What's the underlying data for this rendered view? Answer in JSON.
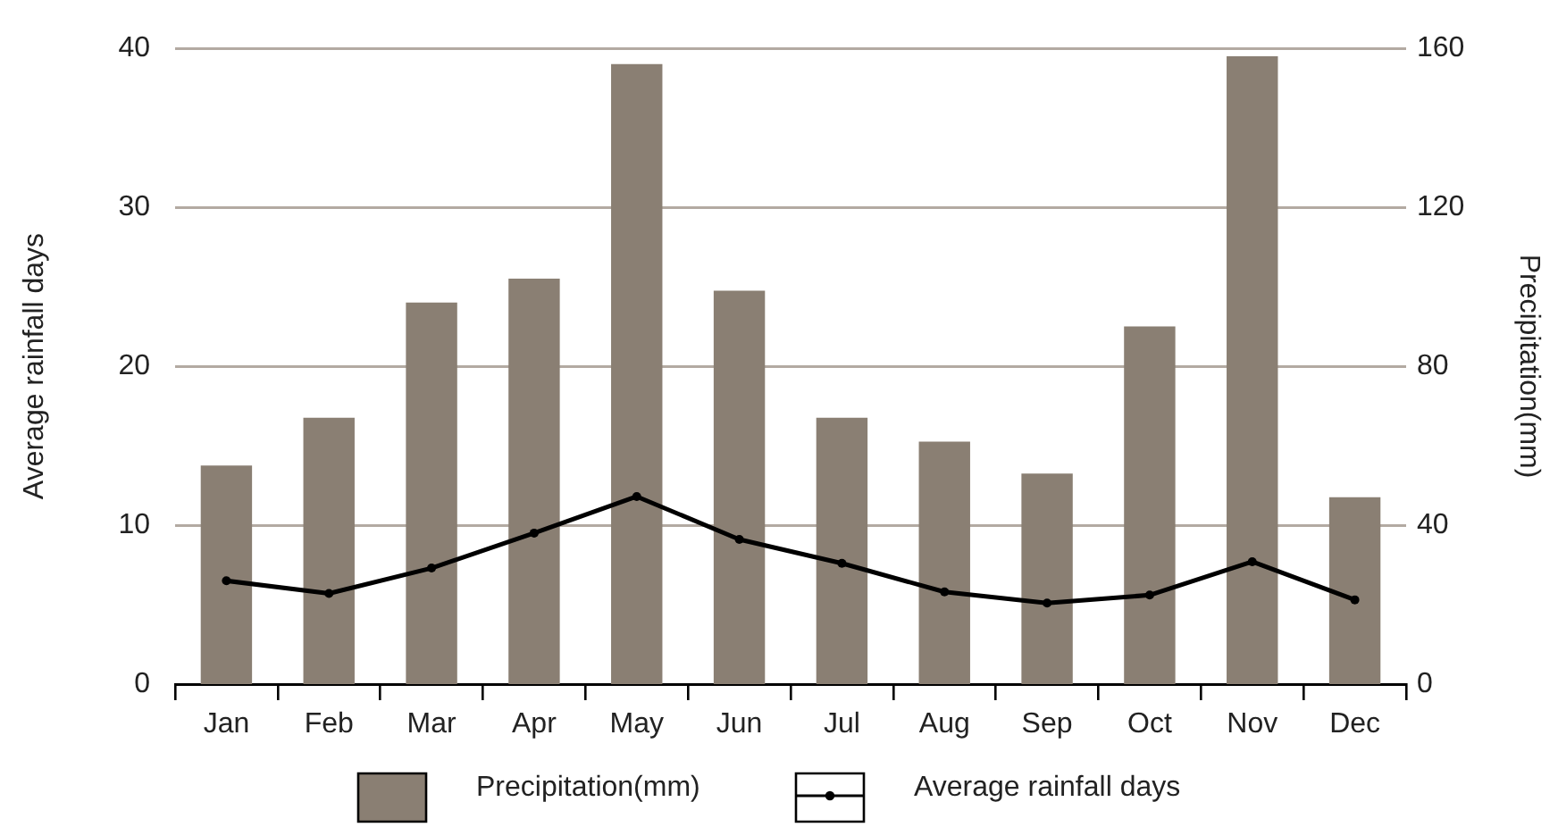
{
  "chart_data": {
    "type": "bar",
    "categories": [
      "Jan",
      "Feb",
      "Mar",
      "Apr",
      "May",
      "Jun",
      "Jul",
      "Aug",
      "Sep",
      "Oct",
      "Nov",
      "Dec"
    ],
    "series": [
      {
        "name": "Precipitation(mm)",
        "color": "#8a7f73",
        "axis": "y2",
        "values": [
          55,
          67,
          96,
          102,
          156,
          99,
          67,
          61,
          53,
          90,
          158,
          47
        ]
      },
      {
        "name": "Average rainfall days",
        "type": "line",
        "color": "#000000",
        "values": [
          6.5,
          5.7,
          7.3,
          9.5,
          11.8,
          9.1,
          7.6,
          5.8,
          5.1,
          5.6,
          7.7,
          5.3
        ]
      }
    ],
    "ylabel": "Average rainfall days",
    "y2label": "Precipitation(mm)",
    "ylim": [
      0,
      40
    ],
    "yticks": [
      0,
      10,
      20,
      30,
      40
    ],
    "y2lim": [
      0,
      160
    ],
    "y2ticks": [
      0,
      40,
      80,
      120,
      160
    ],
    "grid": "y",
    "legend": "bottom",
    "marker": "circle"
  }
}
